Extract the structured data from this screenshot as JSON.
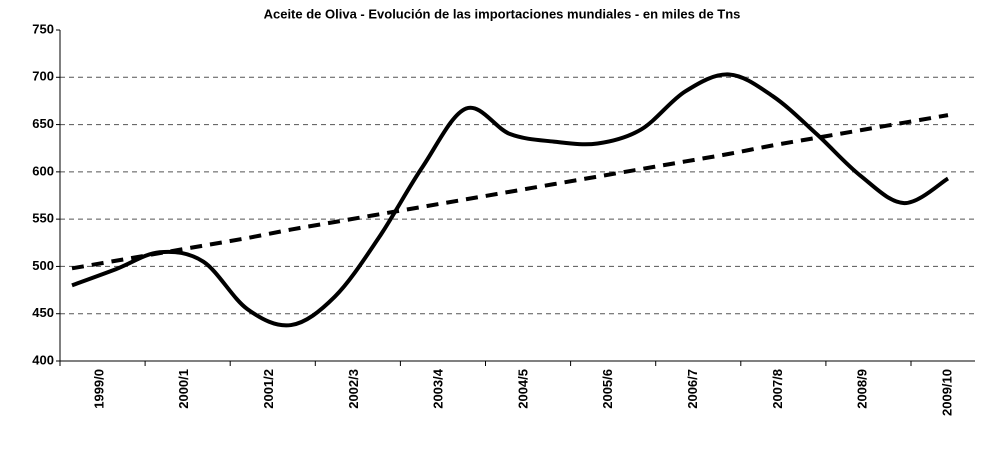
{
  "chart_data": {
    "type": "line",
    "title": "Aceite de Oliva - Evolución de las importaciones mundiales - en miles de Tns",
    "categories": [
      "1999/0",
      null,
      "2000/1",
      null,
      "2001/2",
      null,
      "2002/3",
      null,
      "2003/4",
      null,
      "2004/5",
      null,
      "2005/6",
      null,
      "2006/7",
      null,
      "2007/8",
      null,
      "2008/9",
      null,
      "2009/10"
    ],
    "series": [
      {
        "color": "#000000",
        "style": "solid",
        "values": [
          480,
          497,
          515,
          505,
          455,
          438,
          468,
          530,
          605,
          667,
          640,
          632,
          630,
          645,
          685,
          703,
          680,
          640,
          596,
          567,
          593
        ]
      },
      {
        "color": "#000000",
        "style": "dashed",
        "values": [
          498,
          506,
          514,
          522,
          530,
          539,
          547,
          555,
          563,
          571,
          579,
          587,
          595,
          603,
          611,
          619,
          628,
          636,
          644,
          652,
          660
        ]
      }
    ],
    "ylim": [
      400,
      750
    ],
    "yticks": [
      400,
      450,
      500,
      550,
      600,
      650,
      700,
      750
    ],
    "grid": true,
    "smooth": true
  }
}
